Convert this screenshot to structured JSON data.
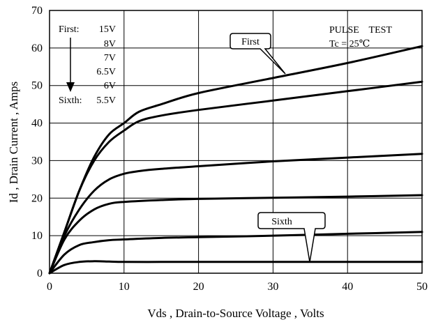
{
  "chart_data": {
    "type": "line",
    "title": "",
    "xlabel": "Vds , Drain-to-Source Voltage , Volts",
    "ylabel": "Id , Drain Current , Amps",
    "xlim": [
      0,
      50
    ],
    "ylim": [
      0,
      70
    ],
    "x_ticks": [
      "0",
      "10",
      "20",
      "30",
      "40",
      "50"
    ],
    "y_ticks": [
      "0",
      "10",
      "20",
      "30",
      "40",
      "50",
      "60",
      "70"
    ],
    "grid": true,
    "legend": {
      "placement": "top-left",
      "first_label": "First:",
      "last_label": "Sixth:",
      "entries": [
        "15V",
        "8V",
        "7V",
        "6.5V",
        "6V",
        "5.5V"
      ]
    },
    "notes": [
      "PULSE    TEST",
      "Tc = 25℃"
    ],
    "callouts": [
      {
        "text": "First",
        "points_to": [
          45,
          56.5
        ]
      },
      {
        "text": "Sixth",
        "points_to": [
          35,
          10.5
        ]
      }
    ],
    "series": [
      {
        "x": [
          0,
          2,
          4,
          6,
          8,
          10,
          12,
          15,
          20,
          30,
          40,
          50
        ],
        "values": [
          0,
          11,
          22,
          31,
          37,
          40,
          43,
          45,
          48,
          52,
          56,
          60.5
        ]
      },
      {
        "x": [
          0,
          2,
          4,
          6,
          8,
          10,
          12,
          15,
          20,
          30,
          40,
          50
        ],
        "values": [
          0,
          11,
          22,
          30,
          35,
          38,
          40.5,
          42,
          43.5,
          46,
          48.5,
          51
        ]
      },
      {
        "x": [
          0,
          2,
          4,
          6,
          8,
          10,
          12,
          15,
          20,
          30,
          40,
          50
        ],
        "values": [
          0,
          10,
          17,
          22,
          25,
          26.5,
          27.2,
          27.8,
          28.5,
          29.8,
          30.8,
          31.8
        ]
      },
      {
        "x": [
          0,
          2,
          4,
          6,
          8,
          10,
          15,
          20,
          30,
          40,
          50
        ],
        "values": [
          0,
          9,
          14,
          17,
          18.5,
          19,
          19.5,
          19.8,
          20.1,
          20.4,
          20.8
        ]
      },
      {
        "x": [
          0,
          2,
          4,
          6,
          8,
          10,
          15,
          20,
          30,
          40,
          50
        ],
        "values": [
          0,
          5,
          7.5,
          8.3,
          8.8,
          9,
          9.4,
          9.6,
          10,
          10.5,
          11
        ]
      },
      {
        "x": [
          0,
          2,
          4,
          6,
          8,
          10,
          15,
          20,
          30,
          40,
          50
        ],
        "values": [
          0,
          2.2,
          3,
          3.2,
          3.1,
          3,
          3,
          3,
          3,
          3,
          3
        ]
      }
    ]
  }
}
